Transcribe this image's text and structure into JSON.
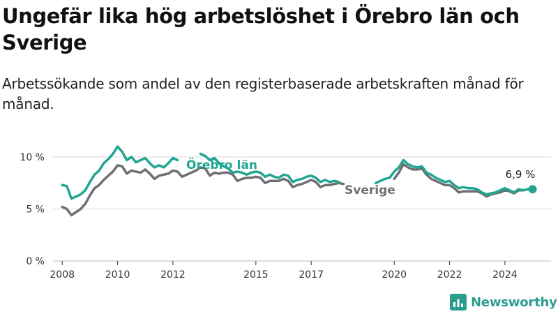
{
  "title": "Ungefär lika hög arbetslöshet i Örebro län och Sverige",
  "subtitle": "Arbetssökande som andel av den registerbaserade arbetskraften månad för månad.",
  "brand": {
    "name": "Newsworthy",
    "icon": "bar-chart-logo-icon"
  },
  "chart_data": {
    "type": "line",
    "xlabel": "",
    "ylabel": "",
    "x_ticks": [
      "2008",
      "2010",
      "2012",
      "2015",
      "2017",
      "2020",
      "2022",
      "2024"
    ],
    "y_ticks": [
      "0 %",
      "5 %",
      "10 %"
    ],
    "ylim": [
      0,
      10
    ],
    "xlim": [
      "2007-09",
      "2025-09"
    ],
    "grid": true,
    "end_label": "6,9 %",
    "colors": {
      "orebro": "#20a592",
      "sverige": "#6f6f73",
      "grid": "#d9d9d9"
    },
    "series": [
      {
        "name": "Örebro län",
        "points": [
          [
            "2008-01",
            7.3
          ],
          [
            "2008-03",
            7.2
          ],
          [
            "2008-05",
            6.0
          ],
          [
            "2008-07",
            6.2
          ],
          [
            "2008-09",
            6.4
          ],
          [
            "2008-11",
            6.8
          ],
          [
            "2009-01",
            7.6
          ],
          [
            "2009-03",
            8.3
          ],
          [
            "2009-05",
            8.7
          ],
          [
            "2009-07",
            9.4
          ],
          [
            "2009-09",
            9.8
          ],
          [
            "2009-11",
            10.3
          ],
          [
            "2010-01",
            11.0
          ],
          [
            "2010-03",
            10.5
          ],
          [
            "2010-05",
            9.7
          ],
          [
            "2010-07",
            10.0
          ],
          [
            "2010-09",
            9.5
          ],
          [
            "2010-11",
            9.7
          ],
          [
            "2011-01",
            9.9
          ],
          [
            "2011-03",
            9.4
          ],
          [
            "2011-05",
            9.0
          ],
          [
            "2011-07",
            9.2
          ],
          [
            "2011-09",
            9.0
          ],
          [
            "2011-11",
            9.4
          ],
          [
            "2012-01",
            9.9
          ],
          [
            "2012-03",
            9.7
          ],
          [
            null,
            null
          ],
          [
            "2013-01",
            10.3
          ],
          [
            "2013-03",
            10.1
          ],
          [
            "2013-05",
            9.7
          ],
          [
            "2013-07",
            9.9
          ],
          [
            "2013-09",
            9.4
          ],
          [
            "2013-11",
            9.1
          ],
          [
            "2014-01",
            8.9
          ],
          [
            "2014-03",
            8.5
          ],
          [
            "2014-05",
            8.6
          ],
          [
            "2014-07",
            8.5
          ],
          [
            "2014-09",
            8.3
          ],
          [
            "2014-11",
            8.5
          ],
          [
            "2015-01",
            8.6
          ],
          [
            "2015-03",
            8.5
          ],
          [
            "2015-05",
            8.1
          ],
          [
            "2015-07",
            8.3
          ],
          [
            "2015-09",
            8.1
          ],
          [
            "2015-11",
            8.0
          ],
          [
            "2016-01",
            8.3
          ],
          [
            "2016-03",
            8.2
          ],
          [
            "2016-05",
            7.6
          ],
          [
            "2016-07",
            7.8
          ],
          [
            "2016-09",
            7.9
          ],
          [
            "2016-11",
            8.1
          ],
          [
            "2017-01",
            8.2
          ],
          [
            "2017-03",
            8.0
          ],
          [
            "2017-05",
            7.6
          ],
          [
            "2017-07",
            7.8
          ],
          [
            "2017-09",
            7.6
          ],
          [
            "2017-11",
            7.7
          ],
          [
            "2018-01",
            7.6
          ],
          [
            null,
            null
          ],
          [
            "2019-05",
            7.5
          ],
          [
            "2019-07",
            7.7
          ],
          [
            "2019-09",
            7.9
          ],
          [
            "2019-11",
            8.0
          ],
          [
            "2020-01",
            8.6
          ],
          [
            "2020-03",
            9.0
          ],
          [
            "2020-05",
            9.7
          ],
          [
            "2020-07",
            9.3
          ],
          [
            "2020-09",
            9.1
          ],
          [
            "2020-11",
            9.0
          ],
          [
            "2021-01",
            9.1
          ],
          [
            "2021-03",
            8.5
          ],
          [
            "2021-05",
            8.3
          ],
          [
            "2021-07",
            8.0
          ],
          [
            "2021-09",
            7.8
          ],
          [
            "2021-11",
            7.6
          ],
          [
            "2022-01",
            7.7
          ],
          [
            "2022-03",
            7.3
          ],
          [
            "2022-05",
            7.0
          ],
          [
            "2022-07",
            7.1
          ],
          [
            "2022-09",
            7.0
          ],
          [
            "2022-11",
            7.0
          ],
          [
            "2023-01",
            6.9
          ],
          [
            "2023-03",
            6.6
          ],
          [
            "2023-05",
            6.4
          ],
          [
            "2023-07",
            6.5
          ],
          [
            "2023-09",
            6.6
          ],
          [
            "2023-11",
            6.8
          ],
          [
            "2024-01",
            7.0
          ],
          [
            "2024-03",
            6.8
          ],
          [
            "2024-05",
            6.6
          ],
          [
            "2024-07",
            6.9
          ],
          [
            "2024-09",
            6.8
          ],
          [
            "2024-11",
            6.9
          ],
          [
            "2025-01",
            6.9
          ]
        ]
      },
      {
        "name": "Sverige",
        "points": [
          [
            "2008-01",
            5.2
          ],
          [
            "2008-03",
            5.0
          ],
          [
            "2008-05",
            4.4
          ],
          [
            "2008-07",
            4.7
          ],
          [
            "2008-09",
            5.0
          ],
          [
            "2008-11",
            5.5
          ],
          [
            "2009-01",
            6.3
          ],
          [
            "2009-03",
            7.0
          ],
          [
            "2009-05",
            7.3
          ],
          [
            "2009-07",
            7.8
          ],
          [
            "2009-09",
            8.2
          ],
          [
            "2009-11",
            8.6
          ],
          [
            "2010-01",
            9.2
          ],
          [
            "2010-03",
            9.1
          ],
          [
            "2010-05",
            8.4
          ],
          [
            "2010-07",
            8.7
          ],
          [
            "2010-09",
            8.6
          ],
          [
            "2010-11",
            8.5
          ],
          [
            "2011-01",
            8.8
          ],
          [
            "2011-03",
            8.4
          ],
          [
            "2011-05",
            7.9
          ],
          [
            "2011-07",
            8.2
          ],
          [
            "2011-09",
            8.3
          ],
          [
            "2011-11",
            8.4
          ],
          [
            "2012-01",
            8.7
          ],
          [
            "2012-03",
            8.6
          ],
          [
            "2012-05",
            8.1
          ],
          [
            "2012-07",
            8.3
          ],
          [
            "2012-09",
            8.5
          ],
          [
            "2012-11",
            8.7
          ],
          [
            "2013-01",
            9.0
          ],
          [
            "2013-03",
            8.9
          ],
          [
            "2013-05",
            8.2
          ],
          [
            "2013-07",
            8.5
          ],
          [
            "2013-09",
            8.4
          ],
          [
            "2013-11",
            8.5
          ],
          [
            "2014-01",
            8.5
          ],
          [
            "2014-03",
            8.3
          ],
          [
            "2014-05",
            7.7
          ],
          [
            "2014-07",
            7.9
          ],
          [
            "2014-09",
            8.0
          ],
          [
            "2014-11",
            8.0
          ],
          [
            "2015-01",
            8.1
          ],
          [
            "2015-03",
            8.0
          ],
          [
            "2015-05",
            7.5
          ],
          [
            "2015-07",
            7.7
          ],
          [
            "2015-09",
            7.7
          ],
          [
            "2015-11",
            7.7
          ],
          [
            "2016-01",
            7.9
          ],
          [
            "2016-03",
            7.7
          ],
          [
            "2016-05",
            7.1
          ],
          [
            "2016-07",
            7.3
          ],
          [
            "2016-09",
            7.4
          ],
          [
            "2016-11",
            7.6
          ],
          [
            "2017-01",
            7.8
          ],
          [
            "2017-03",
            7.6
          ],
          [
            "2017-05",
            7.1
          ],
          [
            "2017-07",
            7.3
          ],
          [
            "2017-09",
            7.3
          ],
          [
            "2017-11",
            7.4
          ],
          [
            "2018-01",
            7.5
          ],
          [
            "2018-03",
            7.4
          ],
          [
            null,
            null
          ],
          [
            "2020-01",
            7.9
          ],
          [
            "2020-03",
            8.5
          ],
          [
            "2020-05",
            9.3
          ],
          [
            "2020-07",
            9.0
          ],
          [
            "2020-09",
            8.8
          ],
          [
            "2020-11",
            8.8
          ],
          [
            "2021-01",
            8.9
          ],
          [
            "2021-03",
            8.3
          ],
          [
            "2021-05",
            7.9
          ],
          [
            "2021-07",
            7.7
          ],
          [
            "2021-09",
            7.5
          ],
          [
            "2021-11",
            7.3
          ],
          [
            "2022-01",
            7.3
          ],
          [
            "2022-03",
            7.0
          ],
          [
            "2022-05",
            6.6
          ],
          [
            "2022-07",
            6.7
          ],
          [
            "2022-09",
            6.7
          ],
          [
            "2022-11",
            6.7
          ],
          [
            "2023-01",
            6.7
          ],
          [
            "2023-03",
            6.5
          ],
          [
            "2023-05",
            6.2
          ],
          [
            "2023-07",
            6.4
          ],
          [
            "2023-09",
            6.5
          ],
          [
            "2023-11",
            6.6
          ],
          [
            "2024-01",
            6.8
          ],
          [
            "2024-03",
            6.7
          ],
          [
            "2024-05",
            6.5
          ],
          [
            "2024-07",
            6.8
          ],
          [
            "2024-09",
            6.8
          ],
          [
            "2024-11",
            6.9
          ],
          [
            "2025-01",
            6.9
          ]
        ]
      }
    ]
  }
}
